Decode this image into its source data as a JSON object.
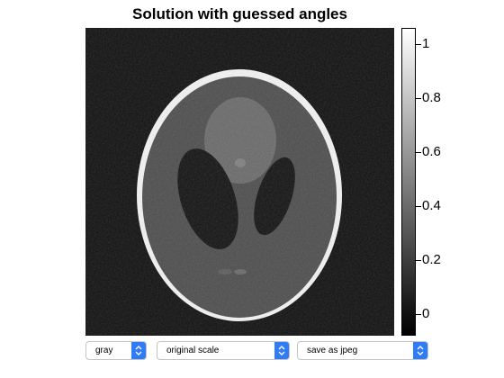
{
  "title": "Solution with guessed angles",
  "colorbar": {
    "ticks": [
      "1",
      "0.8",
      "0.6",
      "0.4",
      "0.2",
      "0"
    ],
    "range": [
      -0.08,
      1.06
    ]
  },
  "controls": {
    "colormap": {
      "value": "gray"
    },
    "scale": {
      "value": "original scale"
    },
    "save": {
      "value": "save as jpeg"
    }
  },
  "image": {
    "colormap": "gray",
    "description_values": {
      "outer_ring": 1.0,
      "background": 0.05,
      "interior": 0.35,
      "dark_ellipses": 0.05
    }
  },
  "colors": {
    "accent": "#2f7cf6"
  }
}
